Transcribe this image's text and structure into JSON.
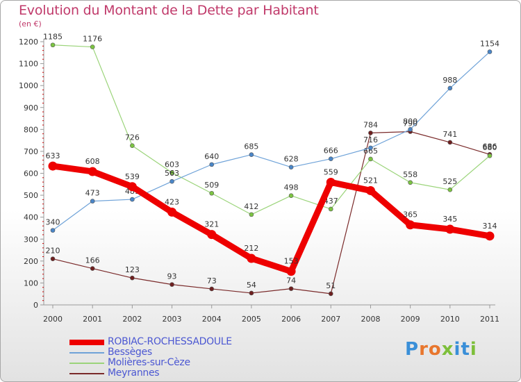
{
  "title": "Evolution du Montant de la Dette par Habitant",
  "unit": "(en €)",
  "logo": {
    "letters": [
      "P",
      "r",
      "o",
      "x",
      "i",
      "t",
      "i"
    ],
    "colors": [
      "#3a8fd8",
      "#e8762d",
      "#e8762d",
      "#7dbf3a",
      "#3a8fd8",
      "#3a8fd8",
      "#7dbf3a"
    ]
  },
  "chart_data": {
    "type": "line",
    "x": [
      "2000",
      "2001",
      "2002",
      "2003",
      "2004",
      "2005",
      "2006",
      "2007",
      "2008",
      "2009",
      "2010",
      "2011"
    ],
    "ylim": [
      0,
      1200
    ],
    "yticks": [
      "0",
      "100",
      "200",
      "300",
      "400",
      "500",
      "600",
      "700",
      "800",
      "900",
      "1000",
      "1100",
      "1200"
    ],
    "grid": false,
    "legend": "bottom",
    "series": [
      {
        "name": "Meyrannes",
        "color": "#7a2a2a",
        "dot": "#6e1f1f",
        "width": 1.2,
        "values": [
          210,
          166,
          123,
          93,
          73,
          54,
          74,
          51,
          784,
          790,
          741,
          686
        ],
        "labels": [
          "210",
          "166",
          "123",
          "93",
          "73",
          "54",
          "74",
          "51",
          "784",
          "790",
          "741",
          "686"
        ]
      },
      {
        "name": "Molières-sur-Cèze",
        "color": "#9bd47a",
        "dot": "#7cc442",
        "width": 1.2,
        "values": [
          1185,
          1176,
          726,
          603,
          509,
          412,
          498,
          437,
          665,
          558,
          525,
          680
        ],
        "labels": [
          "1185",
          "1176",
          "726",
          "603",
          "509",
          "412",
          "498",
          "437",
          "665",
          "558",
          "525",
          "680"
        ]
      },
      {
        "name": "Bessèges",
        "color": "#6ea2d8",
        "dot": "#4a86c8",
        "width": 1.2,
        "values": [
          340,
          473,
          481,
          563,
          640,
          685,
          628,
          666,
          716,
          800,
          988,
          1154
        ],
        "labels": [
          "340",
          "473",
          "481",
          "563",
          "640",
          "685",
          "628",
          "666",
          "716",
          "800",
          "988",
          "1154"
        ]
      },
      {
        "name": "ROBIAC-ROCHESSADOULE",
        "color": "#ee0000",
        "dot": "#ee0000",
        "width": 9,
        "values": [
          633,
          608,
          539,
          423,
          321,
          212,
          153,
          559,
          521,
          365,
          345,
          314
        ],
        "labels": [
          "633",
          "608",
          "539",
          "423",
          "321",
          "212",
          "153",
          "559",
          "521",
          "365",
          "345",
          "314"
        ]
      }
    ],
    "legend_order": [
      "ROBIAC-ROCHESSADOULE",
      "Bessèges",
      "Molières-sur-Cèze",
      "Meyrannes"
    ]
  }
}
